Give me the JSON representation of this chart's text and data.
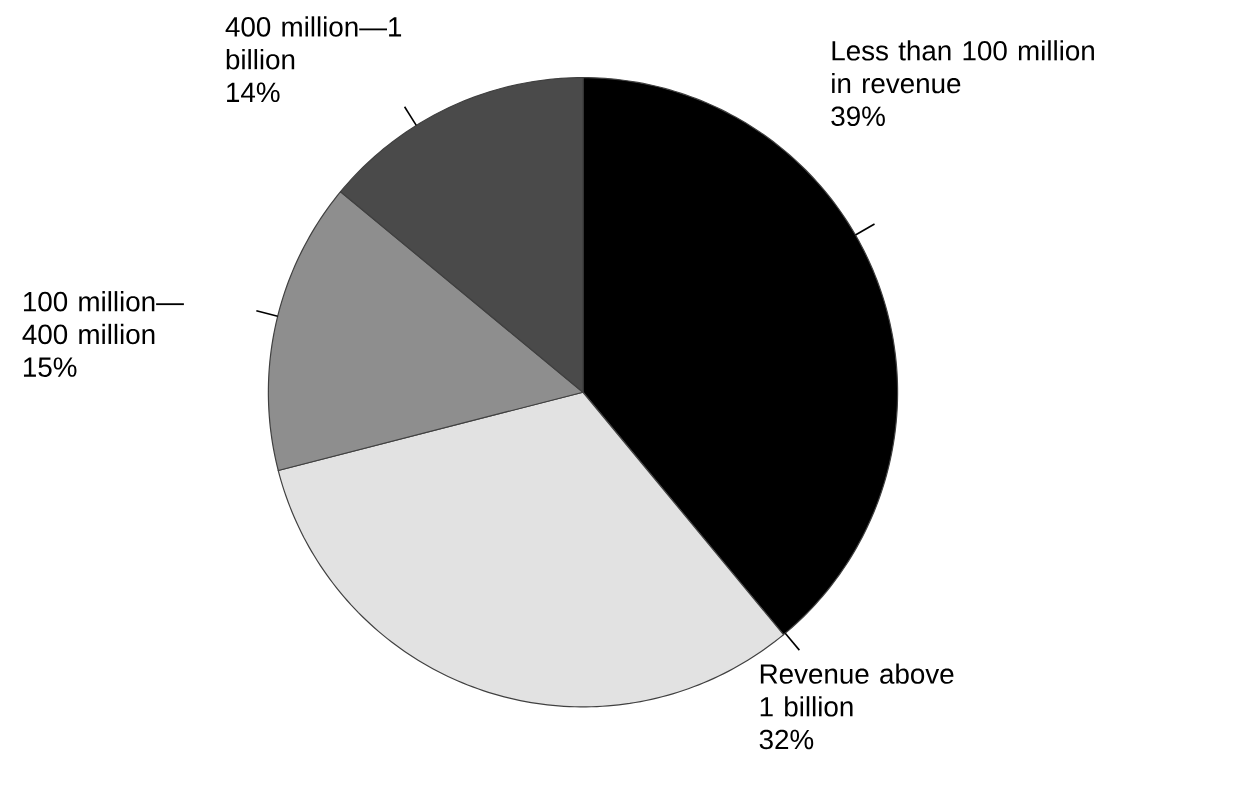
{
  "chart_data": {
    "type": "pie",
    "categories": [
      "Less than 100 million in revenue",
      "Revenue above 1 billion",
      "100 million—400 million",
      "400 million—1 billion"
    ],
    "values": [
      39,
      32,
      15,
      14
    ],
    "value_labels": [
      "39%",
      "32%",
      "15%",
      "14%"
    ],
    "colors": [
      "#000000",
      "#e2e2e2",
      "#8e8e8e",
      "#4a4a4a"
    ]
  }
}
